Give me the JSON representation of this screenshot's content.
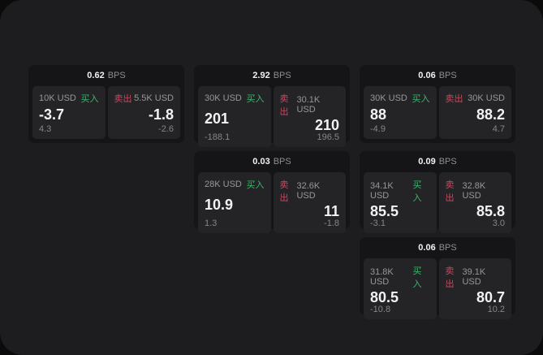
{
  "labels": {
    "bps": "BPS",
    "buy": "买入",
    "sell": "卖出"
  },
  "colors": {
    "screen_bg": "#1d1d1f",
    "outside_bg": "#0b0b0c",
    "card_bg": "#151517",
    "tile_bg": "#242427",
    "buy_green": "#3cb56d",
    "sell_red": "#c8485f"
  },
  "cards": [
    {
      "bps": "0.62",
      "buy": {
        "amount": "10K USD",
        "price": "-3.7",
        "delta": "4.3"
      },
      "sell": {
        "amount": "5.5K USD",
        "price": "-1.8",
        "delta": "-2.6"
      }
    },
    {
      "bps": "2.92",
      "buy": {
        "amount": "30K USD",
        "price": "201",
        "delta": "-188.1"
      },
      "sell": {
        "amount": "30.1K USD",
        "price": "210",
        "delta": "196.5"
      }
    },
    {
      "bps": "0.06",
      "buy": {
        "amount": "30K USD",
        "price": "88",
        "delta": "-4.9"
      },
      "sell": {
        "amount": "30K USD",
        "price": "88.2",
        "delta": "4.7"
      }
    },
    {
      "bps": "0.03",
      "buy": {
        "amount": "28K USD",
        "price": "10.9",
        "delta": "1.3"
      },
      "sell": {
        "amount": "32.6K USD",
        "price": "11",
        "delta": "-1.8"
      }
    },
    {
      "bps": "0.09",
      "buy": {
        "amount": "34.1K USD",
        "price": "85.5",
        "delta": "-3.1"
      },
      "sell": {
        "amount": "32.8K USD",
        "price": "85.8",
        "delta": "3.0"
      }
    },
    {
      "bps": "0.06",
      "buy": {
        "amount": "31.8K USD",
        "price": "80.5",
        "delta": "-10.8"
      },
      "sell": {
        "amount": "39.1K USD",
        "price": "80.7",
        "delta": "10.2"
      }
    }
  ]
}
